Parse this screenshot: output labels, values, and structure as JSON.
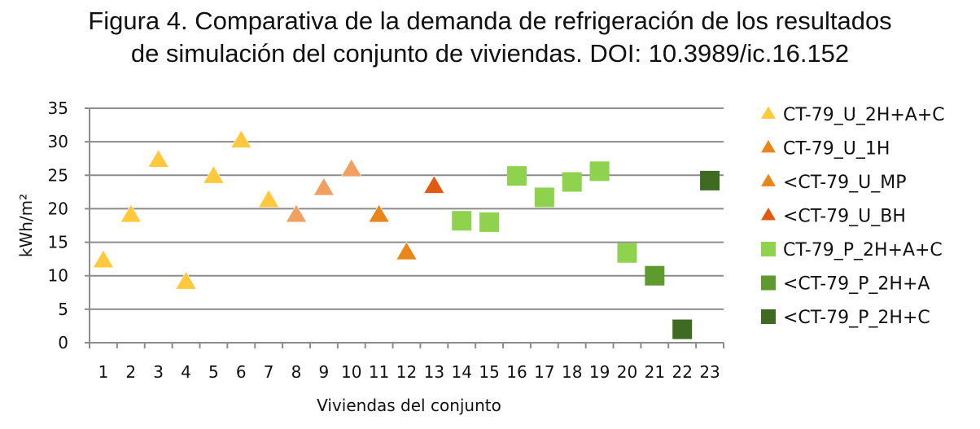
{
  "title_line1": "Figura 4. Comparativa de la demanda de refrigeración de los resultados",
  "title_line2": "de simulación del conjunto de viviendas. DOI: 10.3989/ic.16.152",
  "chart_data": {
    "type": "scatter",
    "xlabel": "Viviendas del conjunto",
    "ylabel": "kWh/m²",
    "ylim": [
      0,
      35
    ],
    "yticks": [
      0,
      5,
      10,
      15,
      20,
      25,
      30,
      35
    ],
    "categories": [
      "1",
      "2",
      "3",
      "4",
      "5",
      "6",
      "7",
      "8",
      "9",
      "10",
      "11",
      "12",
      "13",
      "14",
      "15",
      "16",
      "17",
      "18",
      "19",
      "20",
      "21",
      "22",
      "23"
    ],
    "grid": true,
    "legend_position": "right",
    "series": [
      {
        "name": "CT-79_U_2H+A+C",
        "marker": "triangle",
        "color": "#FFC83D",
        "points": [
          {
            "x": 1,
            "y": 12.2
          },
          {
            "x": 2,
            "y": 19.0
          },
          {
            "x": 3,
            "y": 27.2
          },
          {
            "x": 4,
            "y": 9.0
          },
          {
            "x": 5,
            "y": 24.8
          },
          {
            "x": 6,
            "y": 30.1
          },
          {
            "x": 7,
            "y": 21.2
          }
        ]
      },
      {
        "name": "CT-79_U_1H",
        "marker": "triangle",
        "color": "#F0A060",
        "points": [
          {
            "x": 8,
            "y": 19.0
          },
          {
            "x": 9,
            "y": 23.0
          },
          {
            "x": 10,
            "y": 25.8
          }
        ]
      },
      {
        "name": "<CT-79_U_MP",
        "marker": "triangle",
        "color": "#E8861A",
        "points": [
          {
            "x": 11,
            "y": 19.0
          },
          {
            "x": 12,
            "y": 13.4
          }
        ]
      },
      {
        "name": "<CT-79_U_BH",
        "marker": "triangle",
        "color": "#E05A12",
        "points": [
          {
            "x": 13,
            "y": 23.3
          }
        ]
      },
      {
        "name": "CT-79_P_2H+A+C",
        "marker": "square",
        "color": "#8FD24E",
        "points": [
          {
            "x": 14,
            "y": 18.2
          },
          {
            "x": 15,
            "y": 18.0
          },
          {
            "x": 16,
            "y": 24.9
          },
          {
            "x": 17,
            "y": 21.7
          },
          {
            "x": 18,
            "y": 24.0
          },
          {
            "x": 19,
            "y": 25.6
          },
          {
            "x": 20,
            "y": 13.4
          }
        ]
      },
      {
        "name": "<CT-79_P_2H+A",
        "marker": "square",
        "color": "#5E9A2E",
        "points": [
          {
            "x": 21,
            "y": 10.0
          }
        ]
      },
      {
        "name": "<CT-79_P_2H+C",
        "marker": "square",
        "color": "#3F6A22",
        "points": [
          {
            "x": 22,
            "y": 2.0
          },
          {
            "x": 23,
            "y": 24.2
          }
        ]
      }
    ],
    "legend_colors": [
      "#FFC83D",
      "#E8861A",
      "#E8861A",
      "#E05A12",
      "#8FD24E",
      "#5E9A2E",
      "#3F6A22"
    ]
  }
}
